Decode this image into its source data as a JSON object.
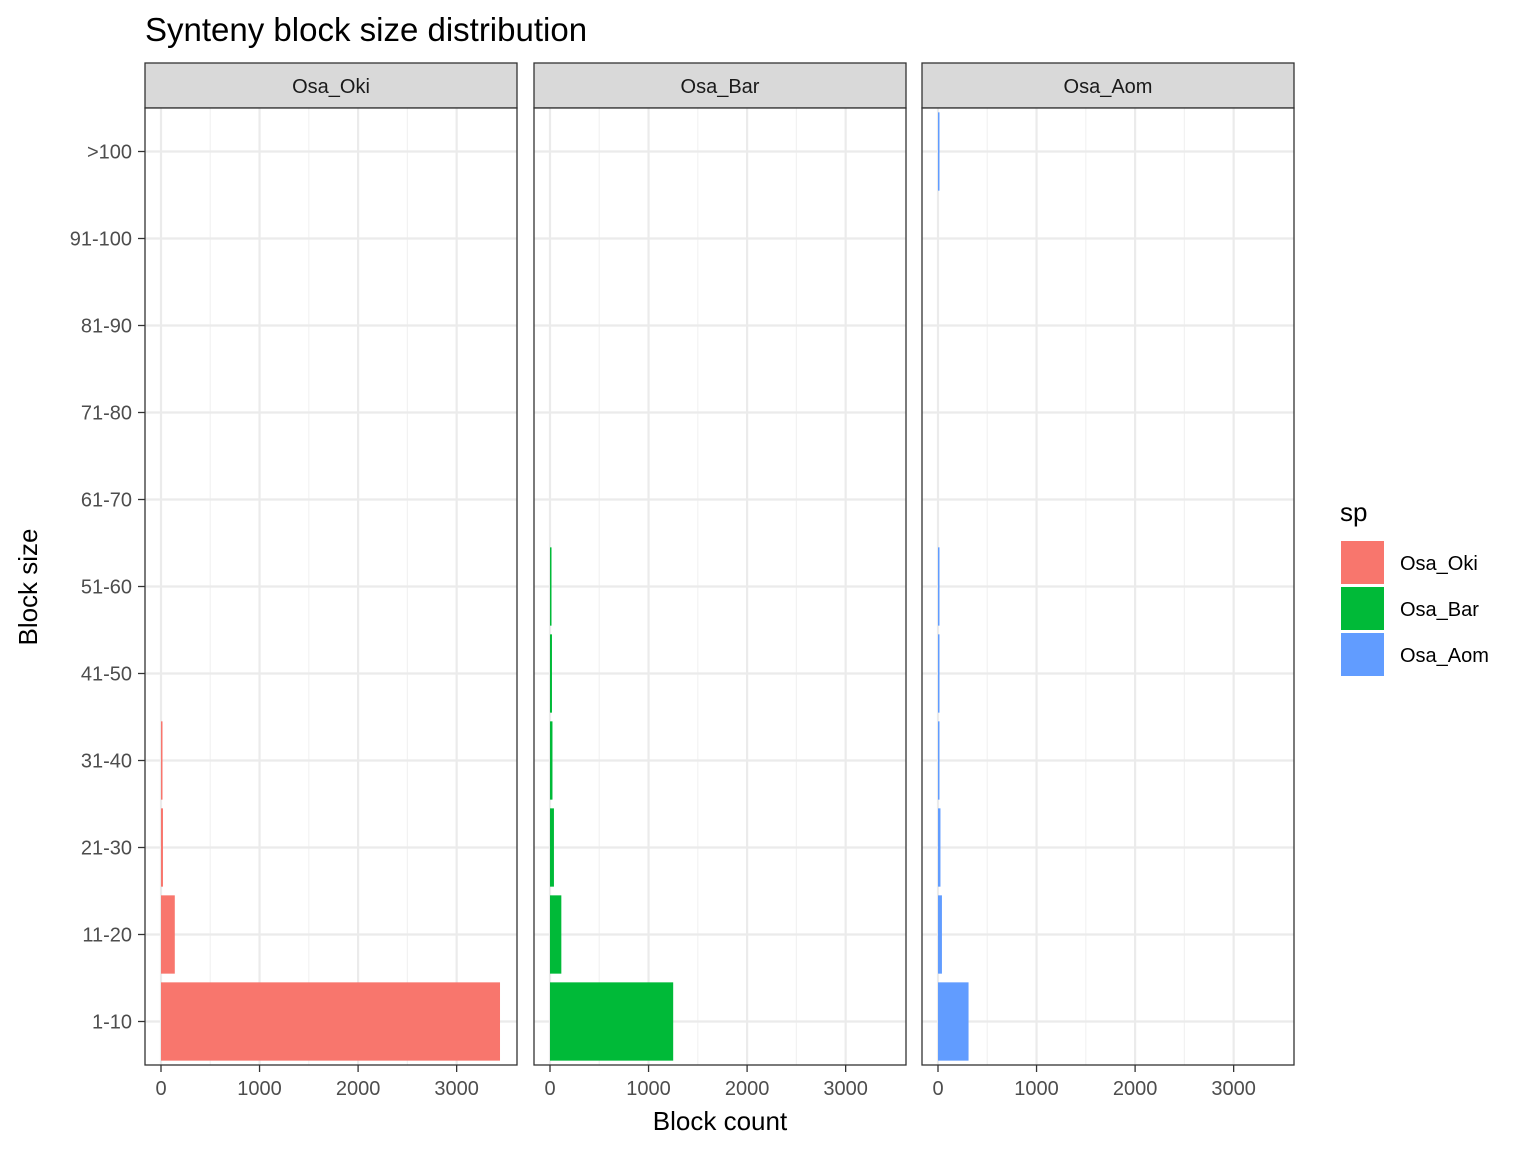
{
  "chart_data": {
    "type": "bar",
    "orientation": "horizontal",
    "title": "Synteny block size distribution",
    "xlabel": "Block count",
    "ylabel": "Block size",
    "xlim": [
      0,
      3450
    ],
    "x_ticks": [
      0,
      1000,
      2000,
      3000
    ],
    "x_tick_labels": [
      "0",
      "1000",
      "2000",
      "3000"
    ],
    "categories": [
      "1-10",
      "11-20",
      "21-30",
      "31-40",
      "41-50",
      "51-60",
      "61-70",
      "71-80",
      "81-90",
      "91-100",
      ">100"
    ],
    "grid": true,
    "legend": {
      "title": "sp",
      "position": "right"
    },
    "panels": [
      {
        "name": "Osa_Oki",
        "color": "#F8766D",
        "values": [
          3440,
          140,
          20,
          10,
          0,
          0,
          0,
          0,
          0,
          0,
          0
        ]
      },
      {
        "name": "Osa_Bar",
        "color": "#00BA38",
        "values": [
          1250,
          115,
          40,
          25,
          20,
          15,
          0,
          0,
          0,
          0,
          0
        ]
      },
      {
        "name": "Osa_Aom",
        "color": "#619CFF",
        "values": [
          310,
          40,
          25,
          15,
          12,
          10,
          0,
          0,
          0,
          0,
          15
        ]
      }
    ]
  }
}
